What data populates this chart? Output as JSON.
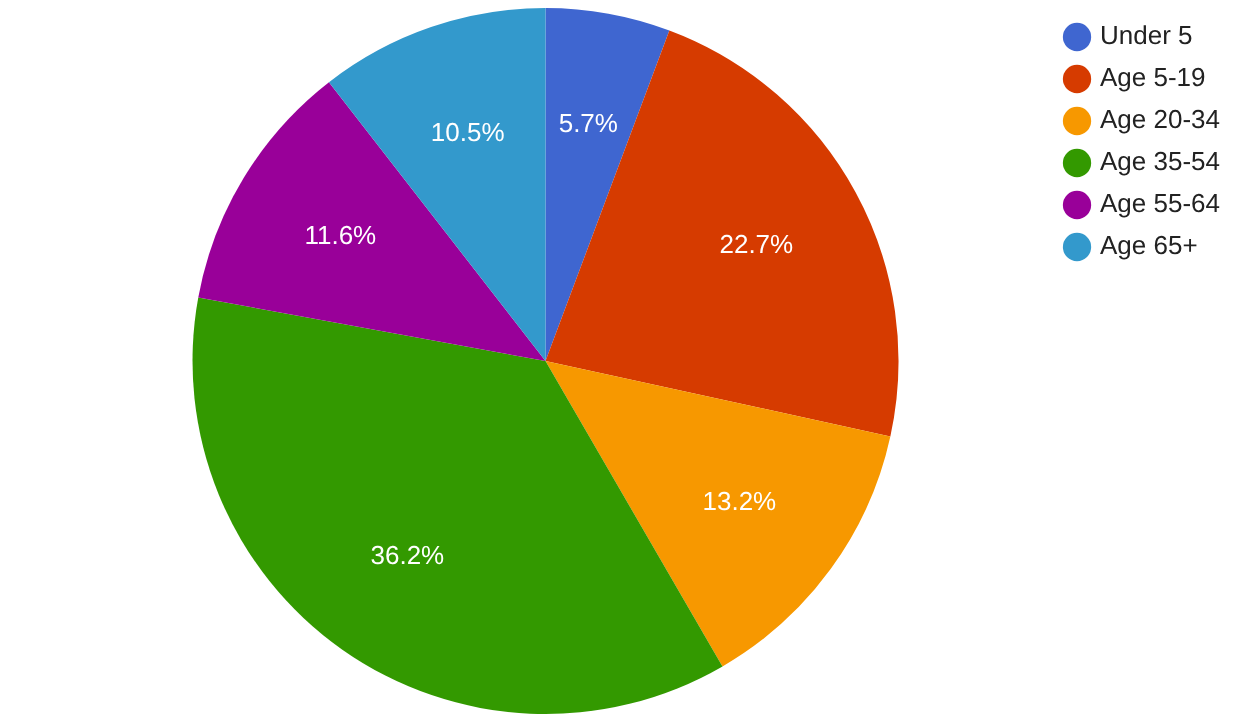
{
  "chart_data": {
    "type": "pie",
    "categories": [
      "Under 5",
      "Age 5-19",
      "Age 20-34",
      "Age 35-54",
      "Age 55-64",
      "Age 65+"
    ],
    "values": [
      5.7,
      22.7,
      13.2,
      36.2,
      11.6,
      10.5
    ],
    "colors": [
      "#3f66d0",
      "#d63b00",
      "#f79800",
      "#339900",
      "#990099",
      "#3399cc"
    ],
    "value_labels": [
      "5.7%",
      "22.7%",
      "13.2%",
      "36.2%",
      "11.6%",
      "10.5%"
    ],
    "legend": "top right"
  }
}
